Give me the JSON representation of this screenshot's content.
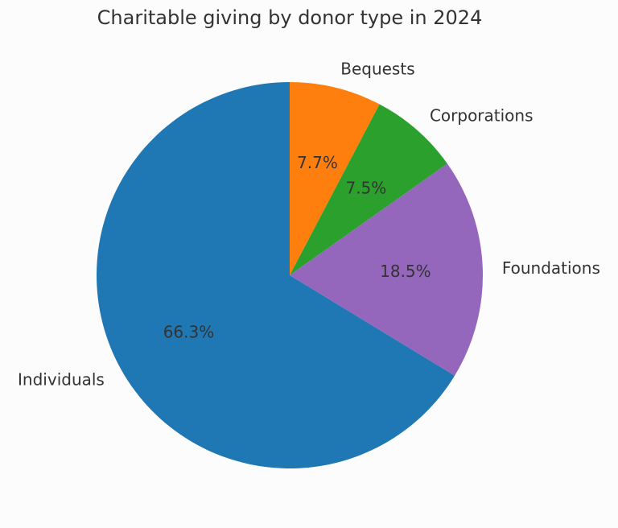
{
  "chart_data": {
    "type": "pie",
    "title": "Charitable giving by donor type in 2024",
    "categories": [
      "Bequests",
      "Corporations",
      "Foundations",
      "Individuals"
    ],
    "values": [
      7.7,
      7.5,
      18.5,
      66.3
    ],
    "labels_pct": [
      "7.7%",
      "7.5%",
      "18.5%",
      "66.3%"
    ],
    "colors": [
      "#ff7f0e",
      "#2ca02c",
      "#9467bd",
      "#1f77b4"
    ],
    "start_angle_deg": 90,
    "direction": "clockwise",
    "legend": "none"
  }
}
